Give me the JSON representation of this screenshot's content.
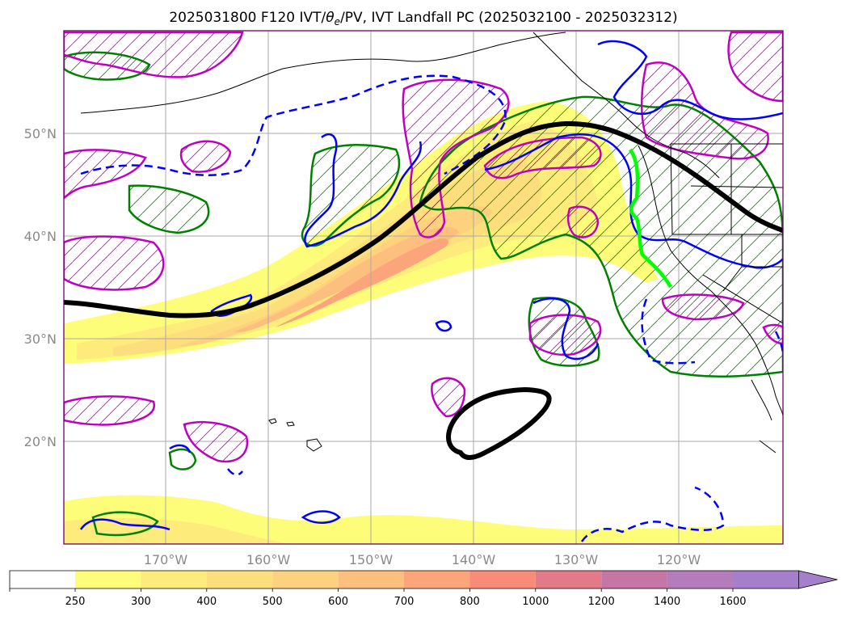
{
  "title": "2025031800 F120 IVT/θe/PV, IVT Landfall PC (2025032100 - 2025032312)",
  "title_parts": {
    "prefix": "2025031800 F120 IVT/",
    "theta": "θ",
    "theta_sub": "e",
    "suffix": "/PV, IVT Landfall PC (2025032100 - 2025032312)"
  },
  "map": {
    "lon_labels": [
      "170°W",
      "160°W",
      "150°W",
      "140°W",
      "130°W",
      "120°W"
    ],
    "lat_labels": [
      "50°N",
      "40°N",
      "30°N",
      "20°N"
    ]
  },
  "colorbar": {
    "ticks": [
      "250",
      "300",
      "400",
      "500",
      "600",
      "700",
      "800",
      "1000",
      "1200",
      "1400",
      "1600"
    ],
    "colors": [
      "#ffffff",
      "#fdfd7a",
      "#fdeb7b",
      "#fdde7c",
      "#fdd17e",
      "#fdbf7e",
      "#fca57b",
      "#f98c79",
      "#e27a88",
      "#c676a3",
      "#b47cbb",
      "#a47fcb"
    ]
  },
  "colors": {
    "ivt_axis": "#000000",
    "theta_e": "#008000",
    "pv_solid": "#0000ff",
    "pv_hatch": "#c000c0",
    "landfall": "#00ff00",
    "grid": "#aaaaaa",
    "frame": "#6a006a"
  }
}
